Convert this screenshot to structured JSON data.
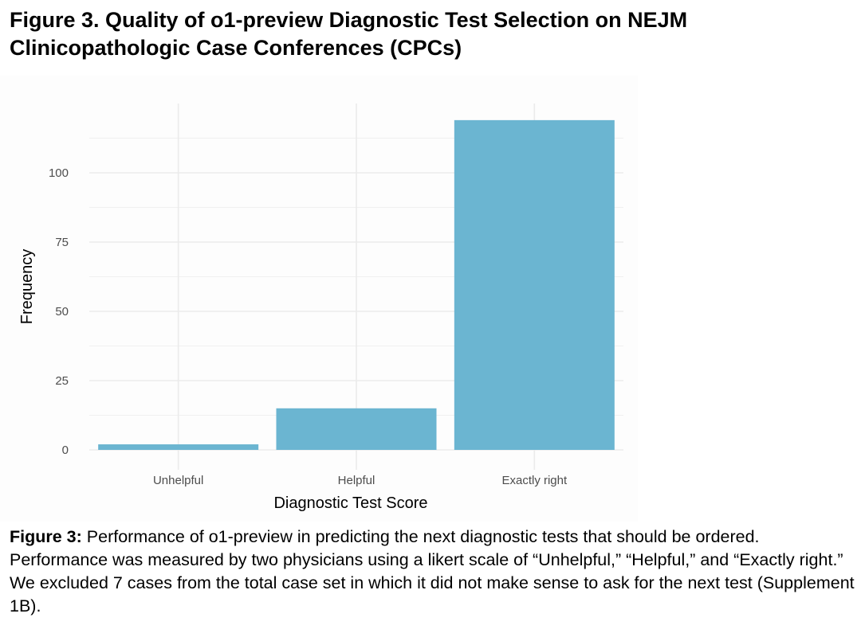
{
  "title": "Figure 3. Quality of o1-preview Diagnostic Test Selection on NEJM Clinicopathologic Case Conferences (CPCs)",
  "caption": {
    "label": "Figure 3:",
    "text": " Performance of o1-preview in predicting the next diagnostic tests that should be ordered. Performance was measured by two physicians using a likert scale of “Unhelpful,” “Helpful,” and “Exactly right.” We excluded 7 cases from the total case set in which it did not make sense to ask for the next test (Supplement 1B)."
  },
  "chart_data": {
    "type": "bar",
    "categories": [
      "Unhelpful",
      "Helpful",
      "Exactly right"
    ],
    "values": [
      2,
      15,
      119
    ],
    "xlabel": "Diagnostic Test Score",
    "ylabel": "Frequency",
    "ylim": [
      0,
      125
    ],
    "yticks": [
      0,
      25,
      50,
      75,
      100
    ],
    "ytick_labels": [
      "0",
      "25",
      "50",
      "75",
      "100"
    ],
    "grid": true,
    "bar_color": "#6bb5d1"
  }
}
